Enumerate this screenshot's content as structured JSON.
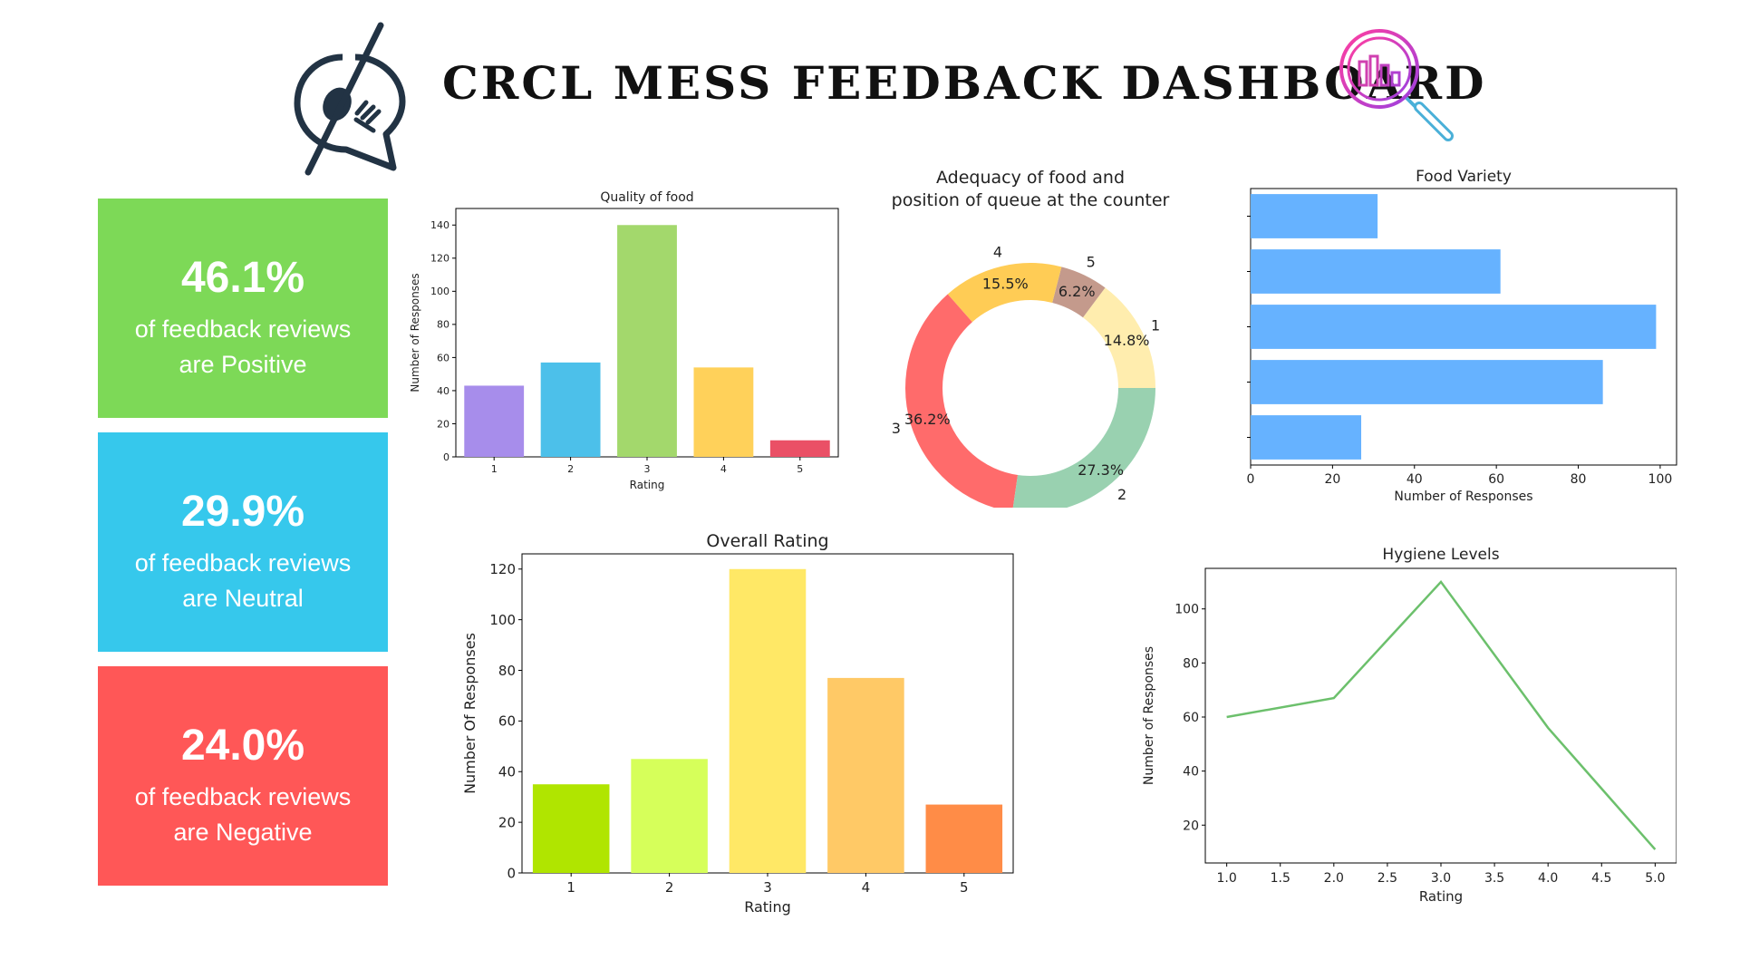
{
  "header": {
    "title": "CRCL MESS FEEDBACK DASHBOARD",
    "logo_icon": "no-food-chat-icon",
    "analytics_icon": "magnifier-chart-icon"
  },
  "cards": {
    "positive": {
      "percent": "46.1%",
      "line1": "of feedback reviews",
      "line2": "are Positive",
      "color": "#7dd957"
    },
    "neutral": {
      "percent": "29.9%",
      "line1": "of feedback reviews",
      "line2": "are Neutral",
      "color": "#36c8ec"
    },
    "negative": {
      "percent": "24.0%",
      "line1": "of feedback reviews",
      "line2": "are Negative",
      "color": "#ff5757"
    }
  },
  "chart_data": [
    {
      "type": "bar",
      "title": "Quality of food",
      "xlabel": "Rating",
      "ylabel": "Number of Responses",
      "categories": [
        "1",
        "2",
        "3",
        "4",
        "5"
      ],
      "values": [
        43,
        57,
        140,
        54,
        10
      ],
      "ylim": [
        0,
        150
      ],
      "yticks": [
        0,
        20,
        40,
        60,
        80,
        100,
        120,
        140
      ],
      "colors": [
        "#a78deb",
        "#4cc0ea",
        "#a3d86c",
        "#ffd15a",
        "#ea5066"
      ],
      "grid": false
    },
    {
      "type": "pie",
      "title": "Adequacy of food and position of queue at the counter",
      "title_lines": [
        "Adequacy of food and",
        "position of queue at the counter"
      ],
      "slices": [
        {
          "label": "1",
          "percent": 14.8,
          "text": "14.8%",
          "color": "#ffedae"
        },
        {
          "label": "5",
          "percent": 6.2,
          "text": "6.2%",
          "color": "#c49a8c"
        },
        {
          "label": "4",
          "percent": 15.5,
          "text": "15.5%",
          "color": "#ffcc55"
        },
        {
          "label": "3",
          "percent": 36.2,
          "text": "36.2%",
          "color": "#ff6b6b"
        },
        {
          "label": "2",
          "percent": 27.3,
          "text": "27.3%",
          "color": "#99d1b0"
        }
      ],
      "donut": true
    },
    {
      "type": "bar",
      "orientation": "horizontal",
      "title": "Food Variety",
      "xlabel": "Number of Responses",
      "ylabel": "",
      "values": [
        27,
        86,
        99,
        61,
        31
      ],
      "xlim": [
        0,
        104
      ],
      "xticks": [
        0,
        20,
        40,
        60,
        80,
        100
      ],
      "color": "#66b2ff",
      "grid": false
    },
    {
      "type": "bar",
      "title": "Overall Rating",
      "xlabel": "Rating",
      "ylabel": "Number Of Responses",
      "categories": [
        "1",
        "2",
        "3",
        "4",
        "5"
      ],
      "values": [
        35,
        45,
        120,
        77,
        27
      ],
      "ylim": [
        0,
        126
      ],
      "yticks": [
        0,
        20,
        40,
        60,
        80,
        100,
        120
      ],
      "colors": [
        "#b0e500",
        "#d6ff5a",
        "#ffe866",
        "#ffc966",
        "#ff8c47"
      ],
      "grid": false
    },
    {
      "type": "line",
      "title": "Hygiene Levels",
      "xlabel": "Rating",
      "ylabel": "Number of Responses",
      "x": [
        1.0,
        2.0,
        3.0,
        4.0,
        5.0
      ],
      "series": [
        {
          "values": [
            60,
            67,
            110,
            56,
            11
          ],
          "color": "#6cc06c"
        }
      ],
      "xlim": [
        0.8,
        5.2
      ],
      "ylim": [
        6,
        115
      ],
      "xticks": [
        "1.0",
        "1.5",
        "2.0",
        "2.5",
        "3.0",
        "3.5",
        "4.0",
        "4.5",
        "5.0"
      ],
      "yticks": [
        20,
        40,
        60,
        80,
        100
      ],
      "grid": false
    }
  ]
}
